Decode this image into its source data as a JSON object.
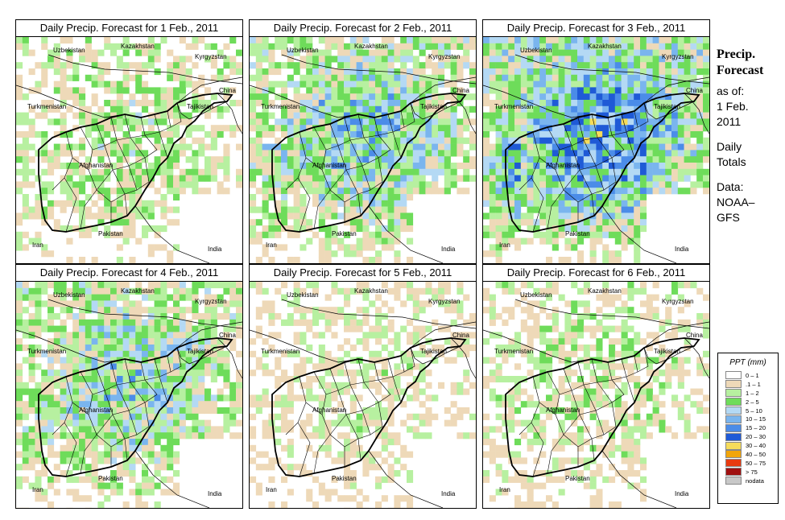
{
  "panels": [
    {
      "title": "Daily Precip. Forecast for  1 Feb., 2011",
      "intensity": 0.35
    },
    {
      "title": "Daily Precip. Forecast for  2 Feb., 2011",
      "intensity": 0.65
    },
    {
      "title": "Daily Precip. Forecast for  3 Feb., 2011",
      "intensity": 0.85
    },
    {
      "title": "Daily Precip. Forecast for  4 Feb., 2011",
      "intensity": 0.6
    },
    {
      "title": "Daily Precip. Forecast for  5 Feb., 2011",
      "intensity": 0.2
    },
    {
      "title": "Daily Precip. Forecast for  6 Feb., 2011",
      "intensity": 0.3
    }
  ],
  "map_labels": {
    "kazakhstan": "Kazakhstan",
    "uzbekistan": "Uzbekistan",
    "kyrgyzstan": "Kyrgyzstan",
    "turkmenistan": "Turkmenistan",
    "tajikistan": "Tajikistan",
    "china": "China",
    "afghanistan": "Afghanistan",
    "pakistan": "Pakistan",
    "iran": "Iran",
    "india": "India"
  },
  "sidebar": {
    "title_line1": "Precip.",
    "title_line2": "Forecast",
    "asof": "as of:",
    "date_line1": "1 Feb.",
    "date_line2": "2011",
    "totals_line1": "Daily",
    "totals_line2": "Totals",
    "data_line1": "Data:",
    "data_line2": "NOAA–",
    "data_line3": "GFS"
  },
  "legend": {
    "title": "PPT (mm)",
    "entries": [
      {
        "label": "0 – 1",
        "color": "#ffffff"
      },
      {
        "label": ".1 – 1",
        "color": "#eed9b8"
      },
      {
        "label": "1 – 2",
        "color": "#b7f0a0"
      },
      {
        "label": "2 – 5",
        "color": "#6edc5a"
      },
      {
        "label": "5 – 10",
        "color": "#b4d9f4"
      },
      {
        "label": "10 – 15",
        "color": "#7ab5ee"
      },
      {
        "label": "15 – 20",
        "color": "#4b8ce8"
      },
      {
        "label": "20 – 30",
        "color": "#1f5ad6"
      },
      {
        "label": "30 – 40",
        "color": "#f6dc5a"
      },
      {
        "label": "40 – 50",
        "color": "#f2a50a"
      },
      {
        "label": "50 – 75",
        "color": "#e83a10"
      },
      {
        "label": "> 75",
        "color": "#a01010"
      },
      {
        "label": "nodata",
        "color": "#c8c8c8"
      }
    ]
  }
}
